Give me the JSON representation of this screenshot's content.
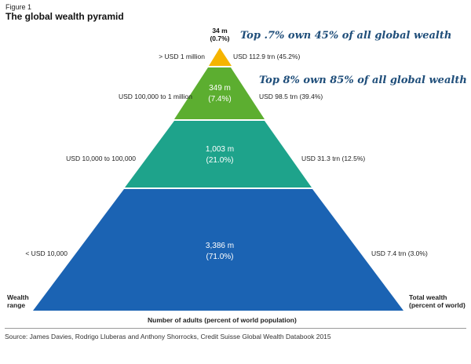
{
  "figure_label": "Figure 1",
  "title": "The global wealth pyramid",
  "tiers": [
    {
      "adults": "34 m",
      "percent": "(0.7%)",
      "range": "> USD 1 million",
      "wealth": "USD 112.9 trn (45.2%)",
      "color": "#f5b400"
    },
    {
      "adults": "349 m",
      "percent": "(7.4%)",
      "range": "USD 100,000 to 1 million",
      "wealth": "USD 98.5 trn (39.4%)",
      "color": "#5cae30"
    },
    {
      "adults": "1,003 m",
      "percent": "(21.0%)",
      "range": "USD 10,000 to 100,000",
      "wealth": "USD 31.3 trn (12.5%)",
      "color": "#1ea38b"
    },
    {
      "adults": "3,386 m",
      "percent": "(71.0%)",
      "range": "< USD 10,000",
      "wealth": "USD 7.4 trn (3.0%)",
      "color": "#1b63b3"
    }
  ],
  "annotations": [
    "Top .7% own 45% of all global wealth",
    "Top 8% own 85% of all global wealth"
  ],
  "labels": {
    "wealth_range": [
      "Wealth",
      "range"
    ],
    "total_wealth": [
      "Total wealth",
      "(percent of world)"
    ],
    "adults_axis": "Number of adults (percent of world population)"
  },
  "source": "Source: James Davies, Rodrigo Lluberas and Anthony Shorrocks, Credit Suisse Global Wealth Databook 2015"
}
